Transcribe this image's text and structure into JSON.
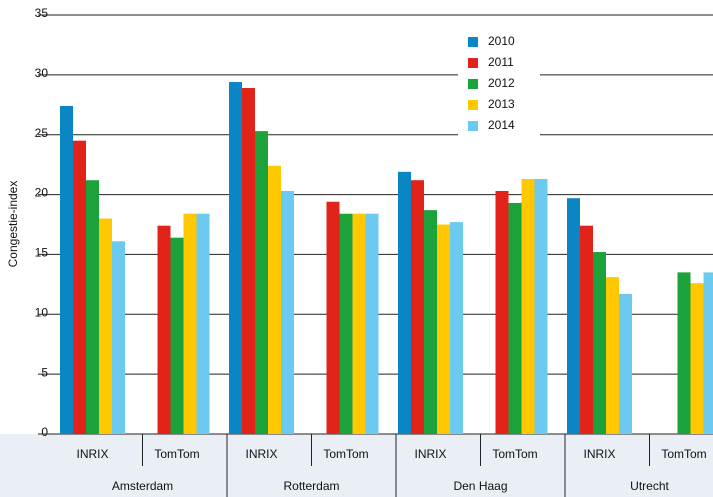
{
  "chart_data": {
    "type": "bar",
    "y_label": "Congestie-index",
    "categories": [
      "INRIX",
      "TomTom",
      "INRIX",
      "TomTom",
      "INRIX",
      "TomTom",
      "INRIX",
      "TomTom"
    ],
    "groups": [
      "Amsterdam",
      "Rotterdam",
      "Den Haag",
      "Utrecht"
    ],
    "series": [
      {
        "name": "2010",
        "color": "#0a86c4",
        "values": [
          27.4,
          null,
          29.4,
          null,
          21.9,
          null,
          19.7,
          null
        ]
      },
      {
        "name": "2011",
        "color": "#e2231a",
        "values": [
          24.5,
          17.4,
          28.9,
          19.4,
          21.2,
          20.3,
          17.4,
          null
        ]
      },
      {
        "name": "2012",
        "color": "#1ca23a",
        "values": [
          21.2,
          16.4,
          25.3,
          18.4,
          18.7,
          19.3,
          15.2,
          13.5
        ]
      },
      {
        "name": "2013",
        "color": "#ffc800",
        "values": [
          18.0,
          18.4,
          22.4,
          18.4,
          17.5,
          21.3,
          13.1,
          12.6
        ]
      },
      {
        "name": "2014",
        "color": "#6cc9f0",
        "values": [
          16.1,
          18.4,
          20.3,
          18.4,
          17.7,
          21.3,
          11.7,
          13.5
        ]
      }
    ],
    "ylim": [
      0,
      35
    ],
    "yticks": [
      0,
      5,
      10,
      15,
      20,
      25,
      30,
      35
    ],
    "grid": true
  }
}
